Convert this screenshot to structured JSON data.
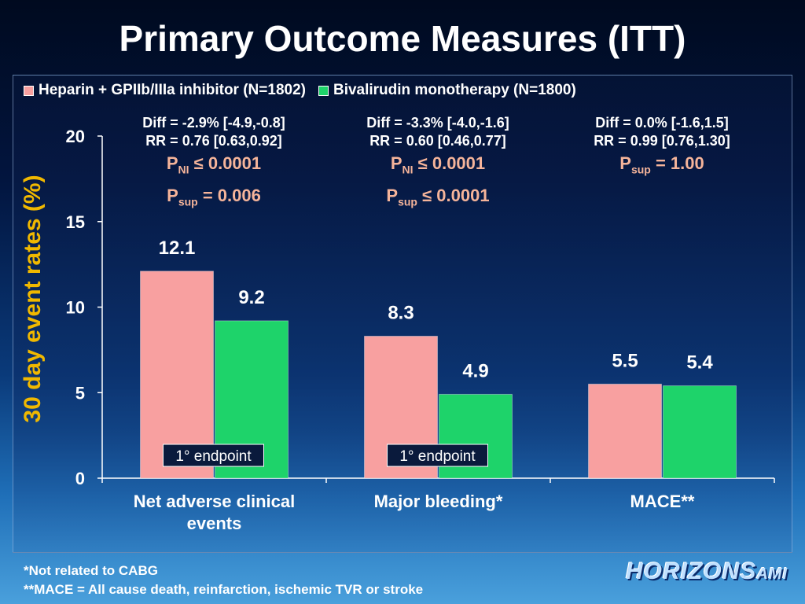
{
  "title": "Primary Outcome Measures (ITT)",
  "legend": {
    "heparin": "Heparin + GPIIb/IIIa inhibitor (N=1802)",
    "bival": "Bivalirudin monotherapy (N=1800)"
  },
  "colors": {
    "heparin": "#f8a0a0",
    "bival": "#1ed36a",
    "endpoint_bg": "#0a1a3c",
    "axis": "#ffffff",
    "ylabel": "#f0b800",
    "p_text": "#f5b49a"
  },
  "stats": [
    {
      "diff": "Diff = -2.9% [-4.9,-0.8]",
      "rr": "RR = 0.76 [0.63,0.92]",
      "p1": {
        "sym": "P",
        "sub": "NI",
        "rest": " ≤ 0.0001"
      },
      "p2": {
        "sym": "P",
        "sub": "sup",
        "rest": " = 0.006"
      }
    },
    {
      "diff": "Diff = -3.3% [-4.0,-1.6]",
      "rr": "RR = 0.60 [0.46,0.77]",
      "p1": {
        "sym": "P",
        "sub": "NI",
        "rest": " ≤ 0.0001"
      },
      "p2": {
        "sym": "P",
        "sub": "sup",
        "rest": " ≤ 0.0001"
      }
    },
    {
      "diff": "Diff = 0.0% [-1.6,1.5]",
      "rr": "RR = 0.99 [0.76,1.30]",
      "p1": {
        "sym": "P",
        "sub": "sup",
        "rest": " = 1.00"
      },
      "p2": null
    }
  ],
  "chart_data": {
    "type": "bar",
    "categories": [
      [
        "Net adverse clinical",
        "events"
      ],
      [
        "Major bleeding*"
      ],
      [
        "MACE**"
      ]
    ],
    "series": [
      {
        "name": "Heparin + GPIIb/IIIa inhibitor (N=1802)",
        "values": [
          12.1,
          8.3,
          5.5
        ],
        "labels": [
          "12.1",
          "8.3",
          "5.5"
        ]
      },
      {
        "name": "Bivalirudin monotherapy (N=1800)",
        "values": [
          9.2,
          4.9,
          5.4
        ],
        "labels": [
          "9.2",
          "4.9",
          "5.4"
        ]
      }
    ],
    "ylabel": "30 day event rates (%)",
    "ylim": [
      0,
      20
    ],
    "yticks": [
      "0",
      "5",
      "10",
      "15",
      "20"
    ],
    "ytick_values": [
      0,
      5,
      10,
      15,
      20
    ],
    "endpoint_label": "1° endpoint",
    "endpoint_categories": [
      0,
      1
    ],
    "grid": false
  },
  "footnotes": [
    "*Not related to CABG",
    "**MACE = All cause death, reinfarction, ischemic TVR or stroke"
  ],
  "logo": {
    "main": "HORIZONS",
    "suffix": "AMI"
  }
}
